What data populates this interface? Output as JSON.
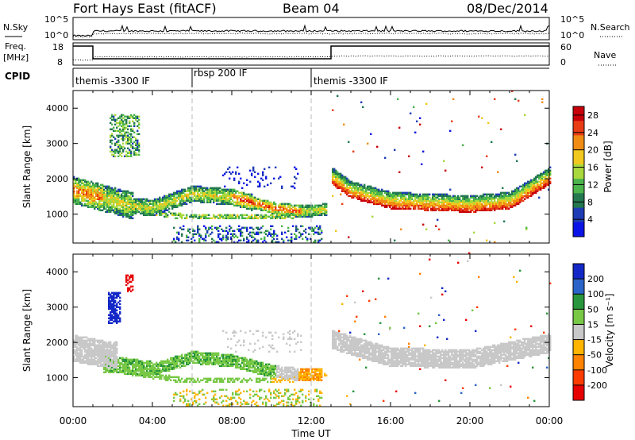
{
  "header": {
    "station": "Fort Hays East (fitACF)",
    "beam": "Beam 04",
    "date": "08/Dec/2014"
  },
  "top_panels": {
    "nsky_label": "N.Sky",
    "nsky_ticks": [
      "10^5",
      "10^0"
    ],
    "nsearch_label": "N.Search",
    "nsearch_ticks": [
      "10^5",
      "10^0"
    ],
    "freq_label_1": "Freq.",
    "freq_label_2": "[MHz]",
    "freq_ticks": [
      "18",
      "8"
    ],
    "nave_label": "Nave",
    "nave_ticks": [
      "60",
      "0"
    ],
    "cpid_label": "CPID",
    "cpid_segments": [
      {
        "label": "themis -3300 IF",
        "start": 0,
        "end": 6
      },
      {
        "label": "rbsp 200 IF",
        "start": 6,
        "end": 12
      },
      {
        "label": "themis -3300 IF",
        "start": 12,
        "end": 24
      }
    ]
  },
  "chart_data": [
    {
      "type": "heatmap",
      "name": "power",
      "ylabel": "Slant Range [km]",
      "xlabel": "Time UT",
      "xlim": [
        0,
        24
      ],
      "ylim": [
        180,
        4500
      ],
      "x_ticks": [
        "00:00",
        "04:00",
        "08:00",
        "12:00",
        "16:00",
        "20:00",
        "00:00"
      ],
      "y_ticks": [
        1000,
        2000,
        3000,
        4000
      ],
      "colorbar": {
        "label": "Power [dB]",
        "ticks": [
          4,
          8,
          12,
          16,
          20,
          24,
          28
        ],
        "range": [
          0,
          30
        ],
        "colors": [
          "#0a14e6",
          "#1e3cb4",
          "#237850",
          "#4bb44b",
          "#a8d83c",
          "#f0c81e",
          "#f08c14",
          "#e83c14",
          "#c8000a"
        ]
      },
      "features": [
        {
          "desc": "main band",
          "x": [
            0,
            1,
            2,
            3,
            4,
            6,
            8,
            10,
            11.5,
            12.8
          ],
          "y": [
            1650,
            1500,
            1350,
            1200,
            1150,
            1550,
            1450,
            1150,
            1050,
            1100
          ]
        },
        {
          "desc": "lower branch",
          "x": [
            2.5,
            5.5,
            8,
            10,
            11.5,
            12.8
          ],
          "y": [
            1150,
            900,
            900,
            900,
            950,
            1050
          ]
        },
        {
          "desc": "evening band",
          "x": [
            13,
            14,
            16,
            18,
            20,
            22,
            24
          ],
          "y": [
            1950,
            1550,
            1250,
            1200,
            1150,
            1250,
            1950
          ]
        }
      ]
    },
    {
      "type": "heatmap",
      "name": "velocity",
      "ylabel": "Slant Range [km]",
      "xlabel": "Time UT",
      "xlim": [
        0,
        24
      ],
      "ylim": [
        180,
        4500
      ],
      "x_ticks": [
        "00:00",
        "04:00",
        "08:00",
        "12:00",
        "16:00",
        "20:00",
        "00:00"
      ],
      "y_ticks": [
        1000,
        2000,
        3000,
        4000
      ],
      "colorbar": {
        "label": "Velocity [m s⁻¹]",
        "ticks": [
          "200",
          "100",
          "50",
          "15",
          "-15",
          "-50",
          "-100",
          "-200"
        ],
        "colors": [
          "#1428c8",
          "#2a64c8",
          "#28963c",
          "#78c846",
          "#c8c8c8",
          "#ffb400",
          "#ff8200",
          "#ff3c00",
          "#e60000"
        ]
      },
      "features": [
        {
          "desc": "ground scatter grey band",
          "x": [
            0,
            1,
            2,
            13,
            16,
            20,
            24
          ],
          "y": [
            1800,
            1700,
            1600,
            1900,
            1400,
            1350,
            1800
          ]
        },
        {
          "desc": "green band",
          "x": [
            2,
            4,
            6,
            8,
            10,
            11.5
          ],
          "y": [
            1350,
            1200,
            1550,
            1450,
            1150,
            1050
          ]
        },
        {
          "desc": "orange/red patch",
          "x": [
            11,
            12
          ],
          "y": [
            1100,
            1050
          ]
        }
      ]
    }
  ]
}
